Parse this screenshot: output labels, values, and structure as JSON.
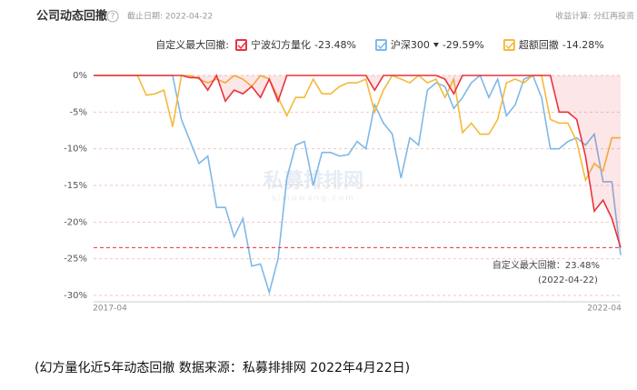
{
  "chart_data": {
    "type": "line",
    "title": "公司动态回撤",
    "subtitle": "截止日期: 2022-04-22",
    "calc_note": "收益计算: 分红再投资",
    "legend_title": "自定义最大回撤:",
    "watermark": "私募排排网",
    "watermark_url": "simuwang.com",
    "caption": "(幻方量化近5年动态回撤 数据来源：私募排排网 2022年4月22日)",
    "categories": [
      "2017-04",
      null,
      null,
      null,
      null,
      null,
      null,
      null,
      null,
      null,
      null,
      null,
      null,
      null,
      null,
      null,
      null,
      null,
      null,
      null,
      null,
      null,
      null,
      null,
      null,
      null,
      null,
      null,
      null,
      null,
      null,
      null,
      null,
      null,
      null,
      null,
      null,
      null,
      null,
      null,
      null,
      null,
      null,
      null,
      null,
      null,
      null,
      null,
      null,
      null,
      null,
      null,
      null,
      null,
      null,
      null,
      null,
      null,
      null,
      null,
      "2022-04"
    ],
    "series": [
      {
        "name": "宁波幻方量化",
        "legend_value": "-23.48%",
        "color": "#e8323c",
        "area": true,
        "values": [
          0,
          0,
          0,
          0,
          0,
          0,
          0,
          0,
          0,
          0,
          0,
          -0.3,
          -0.3,
          -2,
          0,
          -3.5,
          -2,
          -2.5,
          -1.5,
          -3,
          -0.5,
          -3.5,
          0,
          0,
          0,
          0,
          0,
          0,
          0,
          0,
          0,
          0,
          -2,
          0,
          0,
          0,
          0,
          0,
          0,
          0,
          -0.5,
          -2.5,
          0,
          0,
          0,
          0,
          0,
          0,
          0,
          0,
          0,
          0,
          0,
          -5,
          -5,
          -6,
          -11,
          -18.5,
          -17,
          -19.5,
          -23.48
        ]
      },
      {
        "name": "沪深300",
        "legend_value": "-29.59%",
        "color": "#7fb8e8",
        "area": false,
        "values": [
          0,
          0,
          0,
          0,
          0,
          0,
          0,
          0,
          0,
          0,
          -6,
          -9,
          -12,
          -11,
          -18,
          -18,
          -22,
          -19.5,
          -26,
          -25.7,
          -29.59,
          -25,
          -14,
          -9.5,
          -9,
          -15,
          -10.5,
          -10.5,
          -11,
          -10.8,
          -9,
          -10,
          -4,
          -6.5,
          -8,
          -14,
          -8.5,
          -9.5,
          -2,
          -1,
          -1.5,
          -4.5,
          -3,
          -1,
          0,
          -3,
          -0.5,
          -5.5,
          -4,
          -0.5,
          0,
          -3,
          -10,
          -10,
          -9,
          -8.5,
          -9.5,
          -8,
          -14.5,
          -14.5,
          -24.5
        ]
      },
      {
        "name": "超额回撤",
        "legend_value": "-14.28%",
        "color": "#f5b93a",
        "area": false,
        "values": [
          0,
          0,
          0,
          0,
          0,
          0,
          -2.7,
          -2.5,
          -2,
          -7,
          0,
          0,
          -0.5,
          -1,
          -0.5,
          -1,
          0,
          -0.5,
          -1.5,
          0,
          -0.5,
          -3,
          -5.5,
          -3,
          -3,
          -0.5,
          -2.5,
          -2.5,
          -1.5,
          -1,
          -1,
          -0.5,
          -5,
          -2,
          0,
          -0.5,
          -1,
          0,
          -1,
          -0.5,
          -3,
          -0.5,
          -7.8,
          -6.5,
          -8,
          -8,
          -6,
          -1,
          -0.5,
          -1,
          0,
          0,
          -6,
          -6.5,
          -6.5,
          -9,
          -14.28,
          -12,
          -13,
          -8.5,
          -8.5
        ]
      }
    ],
    "max_drawdown": -23.48,
    "annotation": "自定义最大回撤：23.48%",
    "annotation_date": "(2022-04-22)",
    "ylim": [
      -30,
      0
    ],
    "yticks": [
      {
        "value": 0,
        "label": "0%"
      },
      {
        "value": -5,
        "label": "-5%"
      },
      {
        "value": -10,
        "label": "-10%"
      },
      {
        "value": -15,
        "label": "-15%"
      },
      {
        "value": -20,
        "label": "-20%"
      },
      {
        "value": -25,
        "label": "-25%"
      },
      {
        "value": -30,
        "label": "-30%"
      }
    ],
    "grid": true
  }
}
